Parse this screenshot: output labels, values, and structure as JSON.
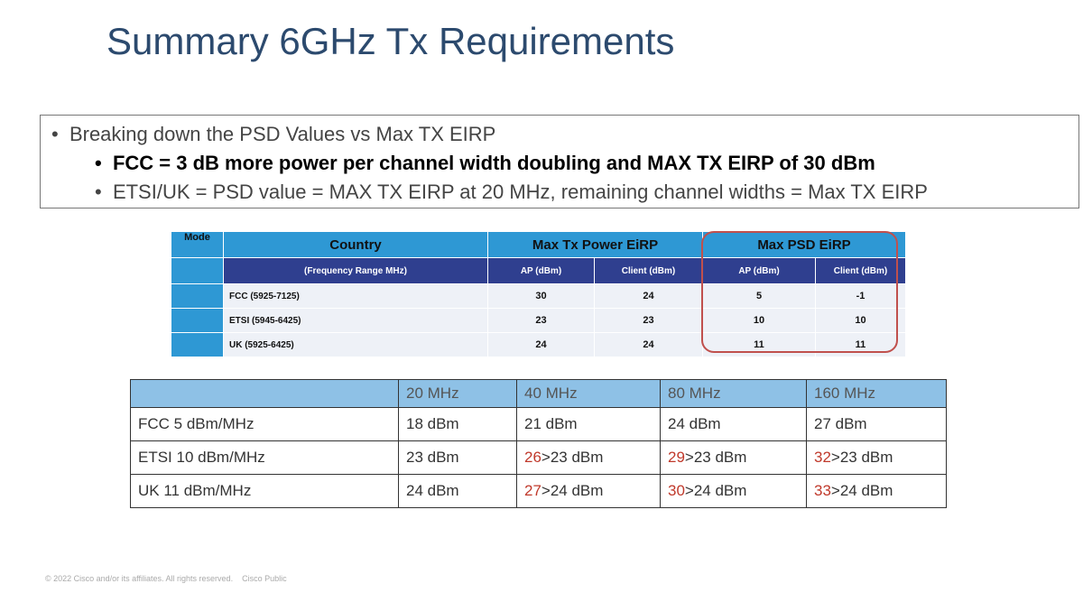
{
  "header": {
    "title": "Summary 6GHz Tx Requirements"
  },
  "bullets": {
    "main": "Breaking down the PSD Values vs Max TX EIRP",
    "sub": [
      "FCC = 3 dB more power per channel width doubling and MAX TX EIRP of 30 dBm",
      "ETSI/UK = PSD value = MAX TX EIRP at 20 MHz, remaining channel widths = Max TX EIRP"
    ]
  },
  "table1": {
    "header": [
      "Mode",
      "Country",
      "Max Tx  Power EiRP",
      "Max PSD EiRP"
    ],
    "subheader": [
      "(Frequency Range MHz)",
      "AP (dBm)",
      "Client (dBm)",
      "AP (dBm)",
      "Client (dBm)"
    ],
    "rows": [
      [
        "FCC (5925-7125)",
        30,
        24,
        5,
        -1
      ],
      [
        "ETSI (5945-6425)",
        23,
        23,
        10,
        10
      ],
      [
        "UK (5925-6425)",
        24,
        24,
        11,
        11
      ]
    ]
  },
  "table2": {
    "header": [
      "20 MHz",
      "40 MHz",
      "80 MHz",
      "160 MHz"
    ],
    "rows": [
      [
        "FCC 5 dBm/MHz",
        "18 dBm",
        "21 dBm",
        "24 dBm",
        "27 dBm"
      ],
      [
        "ETSI 10 dBm/MHz",
        "23 dBm",
        {
          "red": "26",
          "rest": ">23 dBm"
        },
        {
          "red": "29",
          "rest": ">23 dBm"
        },
        {
          "red": "32",
          "rest": ">23 dBm"
        }
      ],
      [
        "UK 11 dBm/MHz",
        "24 dBm",
        {
          "red": "27",
          "rest": ">24 dBm"
        },
        {
          "red": "30",
          "rest": ">24 dBm"
        },
        {
          "red": "33",
          "rest": ">24 dBm"
        }
      ]
    ]
  },
  "footer": {
    "copyright": "© 2022  Cisco and/or its affiliates. All rights reserved.",
    "classification": "Cisco Public"
  }
}
